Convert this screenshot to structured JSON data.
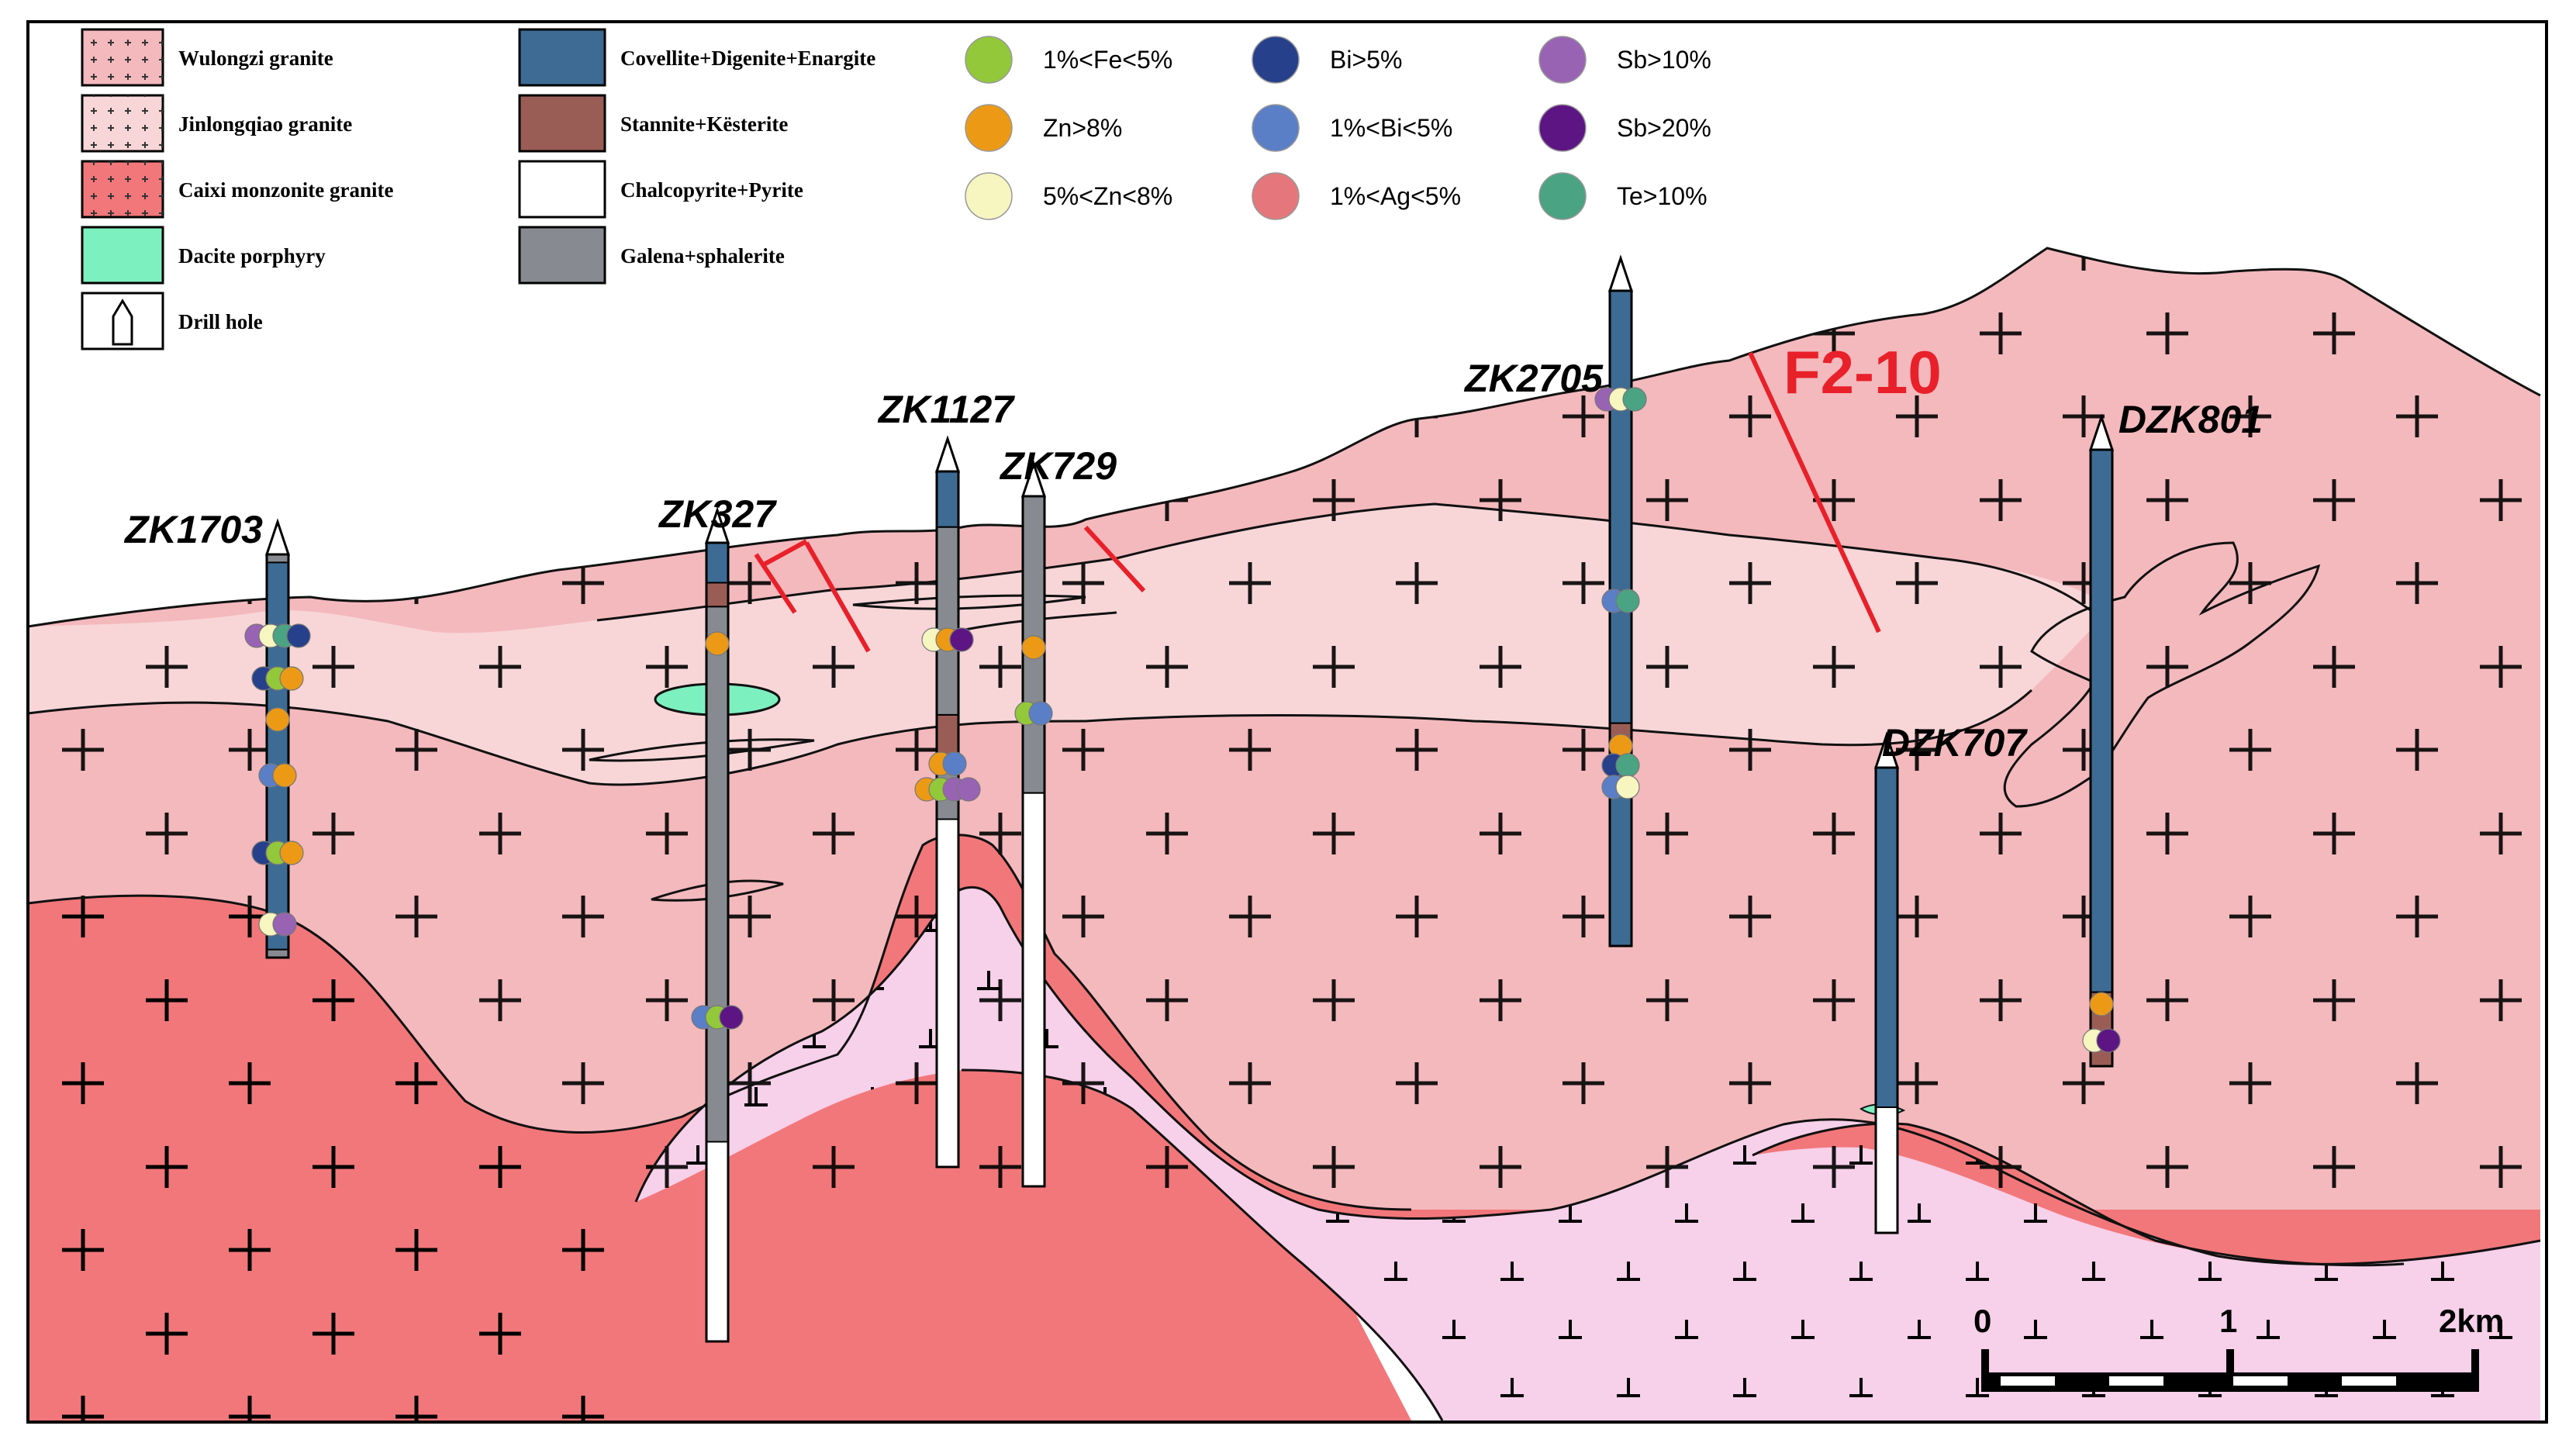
{
  "legend": {
    "lithology": [
      {
        "label": "Wulongzi granite",
        "color": "#f4b9bd",
        "pattern": "plus"
      },
      {
        "label": "Jinlongqiao granite",
        "color": "#f8d6d8",
        "pattern": "plus-small"
      },
      {
        "label": "Caixi monzonite granite",
        "color": "#f2777a",
        "pattern": "plus"
      },
      {
        "label": "Dacite porphyry",
        "color": "#7df0c0",
        "pattern": "none"
      },
      {
        "label": "Drill hole",
        "color": "#ffffff",
        "pattern": "drill-icon"
      }
    ],
    "minerals": [
      {
        "label": "Covellite+Digenite+Enargite",
        "color": "#3d6b94"
      },
      {
        "label": "Stannite+Kësterite",
        "color": "#9a5d56"
      },
      {
        "label": "Chalcopyrite+Pyrite",
        "color": "#ffffff"
      },
      {
        "label": "Galena+sphalerite",
        "color": "#878b91"
      }
    ],
    "elements": [
      {
        "label": "1%<Fe<5%",
        "color": "#93c83a"
      },
      {
        "label": "Zn>8%",
        "color": "#ec9a16"
      },
      {
        "label": "5%<Zn<8%",
        "color": "#f7f5c0"
      },
      {
        "label": "Bi>5%",
        "color": "#27408b"
      },
      {
        "label": "1%<Bi<5%",
        "color": "#5a7fc6"
      },
      {
        "label": "1%<Ag<5%",
        "color": "#e5767c"
      },
      {
        "label": "Sb>10%",
        "color": "#9963b4"
      },
      {
        "label": "Sb>20%",
        "color": "#5c1583"
      },
      {
        "label": "Te>10%",
        "color": "#4aa383"
      }
    ]
  },
  "section_fill_colors": {
    "wulongzi": "#f4b9bd",
    "jinlongqiao": "#f8d6d8",
    "caixi": "#f2777a",
    "diorite": "#f7d0ea",
    "dacite": "#7df0c0",
    "fault": "#e8202a"
  },
  "drill_holes": [
    {
      "id": "ZK1703"
    },
    {
      "id": "ZK327"
    },
    {
      "id": "ZK1127"
    },
    {
      "id": "ZK729"
    },
    {
      "id": "ZK2705"
    },
    {
      "id": "DZK707"
    },
    {
      "id": "DZK801"
    }
  ],
  "fault": {
    "label": "F2-10"
  },
  "scale_bar": {
    "ticks": [
      "0",
      "1",
      "2km"
    ]
  }
}
